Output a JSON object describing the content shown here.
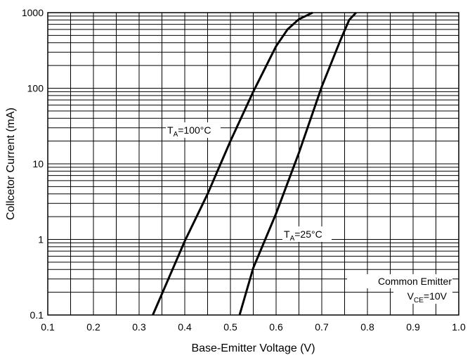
{
  "chart_data": {
    "type": "line",
    "title": "",
    "xlabel": "Base-Emitter Voltage (V)",
    "ylabel": "Collcetor Current (mA)",
    "xlim": [
      0.1,
      1.0
    ],
    "ylim": [
      0.1,
      1000
    ],
    "yscale": "log",
    "grid": true,
    "x_ticks": [
      "0.1",
      "0.2",
      "0.3",
      "0.4",
      "0.5",
      "0.6",
      "0.7",
      "0.8",
      "0.9",
      "1.0"
    ],
    "y_ticks": [
      "0.1",
      "1",
      "10",
      "100",
      "1000"
    ],
    "series": [
      {
        "label_main": "T",
        "label_sub": "A",
        "label_rest": "=100°C",
        "color": "#000000",
        "points": [
          [
            0.33,
            0.1
          ],
          [
            0.4,
            0.95
          ],
          [
            0.45,
            4.0
          ],
          [
            0.5,
            20
          ],
          [
            0.55,
            90
          ],
          [
            0.6,
            360
          ],
          [
            0.625,
            600
          ],
          [
            0.65,
            820
          ],
          [
            0.68,
            1000
          ]
        ]
      },
      {
        "label_main": "T",
        "label_sub": "A",
        "label_rest": "=25°C",
        "color": "#000000",
        "points": [
          [
            0.52,
            0.1
          ],
          [
            0.55,
            0.42
          ],
          [
            0.6,
            2.2
          ],
          [
            0.65,
            14
          ],
          [
            0.7,
            105
          ],
          [
            0.74,
            420
          ],
          [
            0.76,
            800
          ],
          [
            0.775,
            1000
          ]
        ]
      }
    ],
    "annotation": {
      "line1": "Common Emitter",
      "line2_main": "V",
      "line2_sub": "CE",
      "line2_rest": "=10V"
    }
  }
}
